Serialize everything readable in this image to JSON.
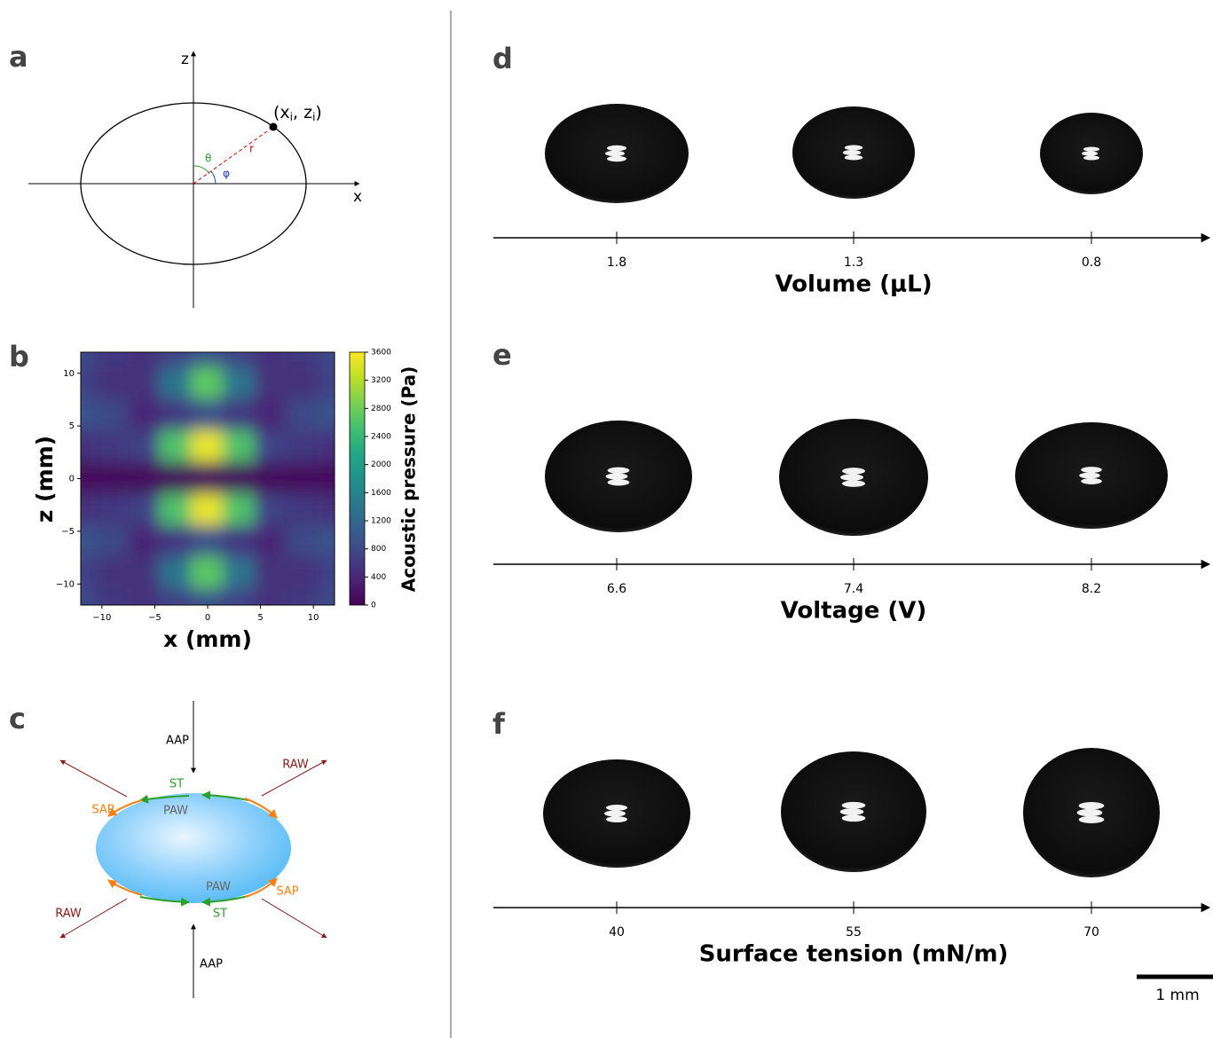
{
  "panel_labels": [
    "a",
    "b",
    "c",
    "d",
    "e",
    "f"
  ],
  "panel_a": {
    "z_axis": "z",
    "x_axis": "x",
    "point_label": [
      "(x",
      "i",
      ", z",
      "i",
      ")"
    ],
    "theta": "θ",
    "phi": "φ",
    "r": "r"
  },
  "chart_data": {
    "type": "heatmap",
    "xlabel": "x (mm)",
    "ylabel": "z (mm)",
    "colorbar_label": "Acoustic pressure (Pa)",
    "colormap": "viridis",
    "x": [
      -12,
      -9,
      -6,
      -3,
      0,
      3,
      6,
      9,
      12
    ],
    "y": [
      12,
      9,
      6,
      3,
      0,
      -3,
      -6,
      -9,
      -12
    ],
    "values": [
      [
        800,
        600,
        500,
        700,
        900,
        700,
        500,
        600,
        800
      ],
      [
        700,
        500,
        500,
        1400,
        2700,
        1400,
        500,
        500,
        700
      ],
      [
        900,
        800,
        400,
        600,
        900,
        600,
        400,
        800,
        900
      ],
      [
        500,
        600,
        700,
        2600,
        3500,
        2600,
        700,
        600,
        500
      ],
      [
        100,
        100,
        100,
        100,
        100,
        100,
        100,
        100,
        100
      ],
      [
        500,
        600,
        700,
        2600,
        3500,
        2600,
        700,
        600,
        500
      ],
      [
        900,
        800,
        400,
        600,
        900,
        600,
        400,
        800,
        900
      ],
      [
        700,
        500,
        500,
        1400,
        2700,
        1400,
        500,
        500,
        700
      ],
      [
        800,
        600,
        500,
        700,
        900,
        700,
        500,
        600,
        800
      ]
    ],
    "xlim": [
      -12,
      12
    ],
    "ylim": [
      -12,
      12
    ],
    "xticks": [
      {
        "value": -10,
        "label": "−10"
      },
      {
        "value": -5,
        "label": "−5"
      },
      0,
      5,
      10
    ],
    "yticks": [
      {
        "value": -10,
        "label": "−10"
      },
      {
        "value": -5,
        "label": "−5"
      },
      0,
      5,
      10
    ],
    "clim": [
      0,
      3600
    ],
    "cticks": [
      0,
      400,
      800,
      1200,
      1600,
      2000,
      2400,
      2800,
      3200,
      3600
    ]
  },
  "panel_c": {
    "labels": [
      "AAP",
      "AAP",
      "ST",
      "ST",
      "SAP",
      "SAP",
      "PAW",
      "PAW",
      "RAW",
      "RAW"
    ]
  },
  "series_panels": [
    {
      "ticks": [
        "1.8",
        "1.3",
        "0.8"
      ],
      "axis_title": "Volume (μL)"
    },
    {
      "ticks": [
        "6.6",
        "7.4",
        "8.2"
      ],
      "axis_title": "Voltage (V)"
    },
    {
      "ticks": [
        "40",
        "55",
        "70"
      ],
      "axis_title": "Surface tension (mN/m)"
    }
  ],
  "scale_bar": "1 mm"
}
